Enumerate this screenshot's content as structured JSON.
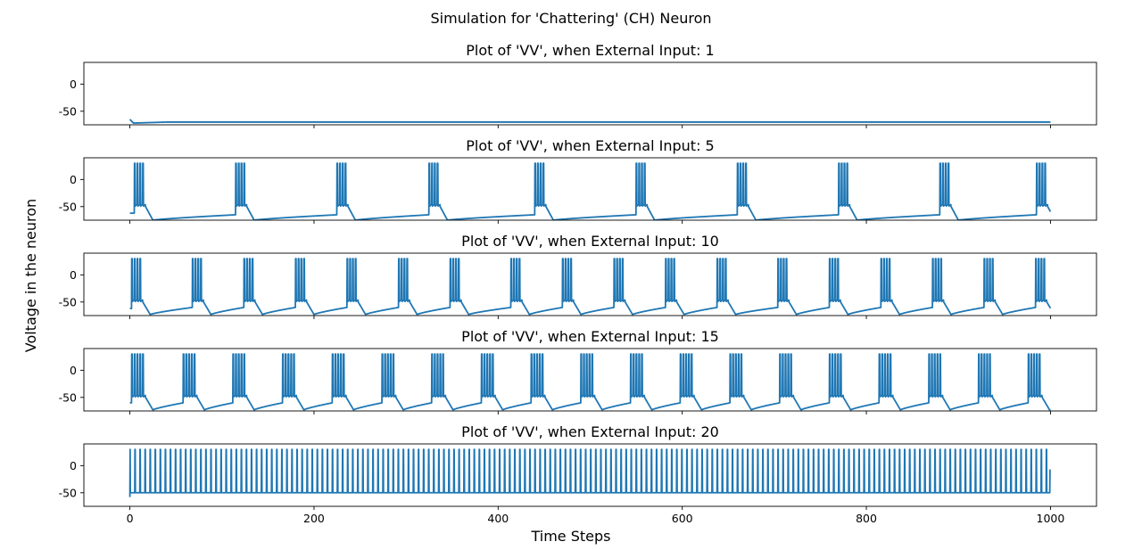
{
  "figure": {
    "suptitle": "Simulation for 'Chattering' (CH) Neuron",
    "xlabel": "Time Steps",
    "ylabel": "Voltage in the neuron"
  },
  "chart_data": {
    "type": "line",
    "shared_x": true,
    "xlim": [
      -50,
      1050
    ],
    "ylim": [
      -75,
      40
    ],
    "x_ticks": [
      0,
      200,
      400,
      600,
      800,
      1000
    ],
    "y_ticks": [
      0,
      -50
    ],
    "line_color": "#1f77b4",
    "grid": false,
    "panels": [
      {
        "title": "Plot of 'VV', when External Input: 1",
        "input": 1,
        "rest": -70,
        "start": -65,
        "burst_times": [],
        "spikes_per_burst": 0,
        "spike_peak": 30,
        "reset": -50,
        "trough": -73
      },
      {
        "title": "Plot of 'VV', when External Input: 5",
        "input": 5,
        "rest": -70,
        "start": -62,
        "burst_times": [
          5,
          115,
          225,
          325,
          440,
          550,
          660,
          770,
          880,
          985
        ],
        "spikes_per_burst": 4,
        "spike_peak": 30,
        "reset": -50,
        "trough": -75
      },
      {
        "title": "Plot of 'VV', when External Input: 10",
        "input": 10,
        "rest": -65,
        "start": -62,
        "burst_times": [
          2,
          68,
          124,
          180,
          236,
          292,
          348,
          414,
          470,
          526,
          582,
          638,
          704,
          760,
          816,
          872,
          928,
          984
        ],
        "spikes_per_burst": 4,
        "spike_peak": 30,
        "reset": -50,
        "trough": -73
      },
      {
        "title": "Plot of 'VV', when External Input: 15",
        "input": 15,
        "rest": -65,
        "start": -60,
        "burst_times": [
          2,
          58,
          112,
          166,
          220,
          274,
          328,
          382,
          436,
          490,
          544,
          598,
          652,
          706,
          760,
          814,
          868,
          922,
          976
        ],
        "spikes_per_burst": 5,
        "spike_peak": 30,
        "reset": -50,
        "trough": -73
      },
      {
        "title": "Plot of 'VV', when External Input: 20",
        "input": 20,
        "rest": -50,
        "start": -58,
        "spike_period": 5.5,
        "burst_times": [],
        "spikes_per_burst": 0,
        "spike_peak": 30,
        "reset": -50,
        "trough": -50,
        "end_value": -8
      }
    ]
  }
}
